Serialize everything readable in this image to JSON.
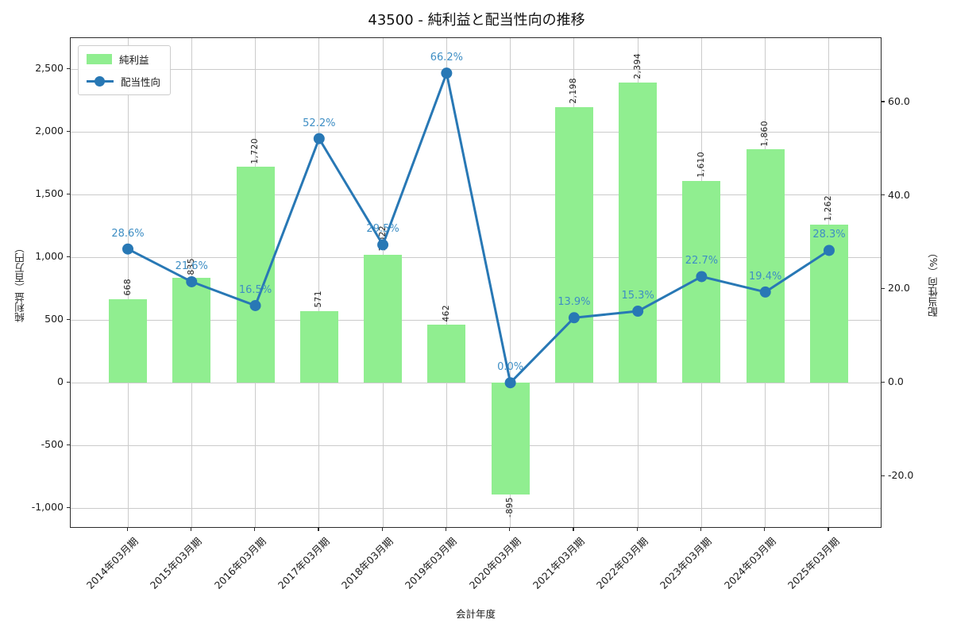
{
  "title": "43500 - 純利益と配当性向の推移",
  "colors": {
    "bar": "#90ee90",
    "line": "#2878b5",
    "pct_label": "#3e8ec4",
    "grid": "#cbcbcb",
    "spine": "#2b2b2b",
    "text": "#1a1a1a"
  },
  "legend": {
    "items": [
      {
        "label": "純利益",
        "type": "bar"
      },
      {
        "label": "配当性向",
        "type": "line"
      }
    ]
  },
  "axes": {
    "x_label": "会計年度",
    "y_left_label": "純利益（百万円）",
    "y_right_label": "配当性向（%）",
    "y_left_ticks": [
      "2,500",
      "2,000",
      "1,500",
      "1,000",
      "500",
      "0",
      "-500",
      "-1,000"
    ],
    "y_left_tick_values": [
      2500,
      2000,
      1500,
      1000,
      500,
      0,
      -500,
      -1000
    ],
    "y_right_ticks": [
      "60.0",
      "40.0",
      "20.0",
      "0.0",
      "-20.0"
    ],
    "y_right_tick_values": [
      60,
      40,
      20,
      0,
      -20
    ]
  },
  "chart_data": {
    "type": "bar",
    "subtype": "bar-line-combo",
    "title": "43500 - 純利益と配当性向の推移",
    "xlabel": "会計年度",
    "ylabel_left": "純利益（百万円）",
    "ylabel_right": "配当性向（%）",
    "categories": [
      "2014年03月期",
      "2015年03月期",
      "2016年03月期",
      "2017年03月期",
      "2018年03月期",
      "2019年03月期",
      "2020年03月期",
      "2021年03月期",
      "2022年03月期",
      "2023年03月期",
      "2024年03月期",
      "2025年03月期"
    ],
    "series": [
      {
        "name": "純利益",
        "type": "bar",
        "axis": "left",
        "unit": "百万円",
        "values": [
          668,
          835,
          1720,
          571,
          1022,
          462,
          -895,
          2198,
          2394,
          1610,
          1860,
          1262
        ],
        "labels": [
          "668",
          "835",
          "1,720",
          "571",
          "1,022",
          "462",
          "-895",
          "2,198",
          "2,394",
          "1,610",
          "1,860",
          "1,262"
        ]
      },
      {
        "name": "配当性向",
        "type": "line",
        "axis": "right",
        "unit": "%",
        "values": [
          28.6,
          21.6,
          16.5,
          52.2,
          29.5,
          66.2,
          0.0,
          13.9,
          15.3,
          22.7,
          19.4,
          28.3
        ],
        "labels": [
          "28.6%",
          "21.6%",
          "16.5%",
          "52.2%",
          "29.5%",
          "66.2%",
          "0.0%",
          "13.9%",
          "15.3%",
          "22.7%",
          "19.4%",
          "28.3%"
        ]
      }
    ],
    "y_left_range": [
      -1164,
      2747
    ],
    "y_right_range": [
      -31.2,
      73.7
    ],
    "grid": true,
    "legend_position": "upper left"
  }
}
